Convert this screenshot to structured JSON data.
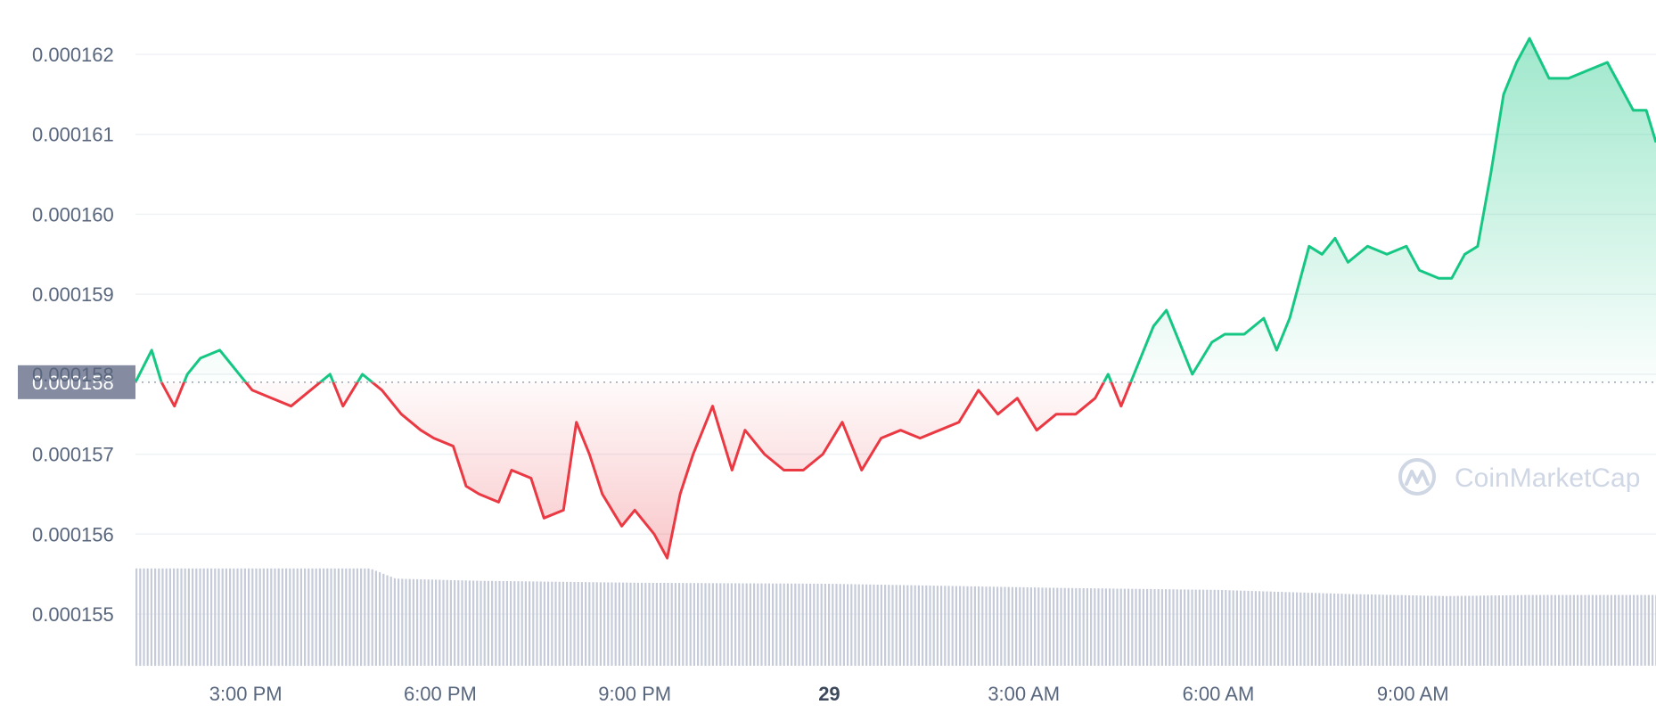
{
  "chart_data": {
    "type": "area",
    "y_ticks": [
      "0.000162",
      "0.000161",
      "0.000160",
      "0.000159",
      "0.000158",
      "0.000157",
      "0.000156",
      "0.000155"
    ],
    "y_tick_values": [
      0.000162,
      0.000161,
      0.00016,
      0.000159,
      0.000158,
      0.000157,
      0.000156,
      0.000155
    ],
    "ylim": [
      0.0001546,
      0.0001626
    ],
    "reference_price": 0.0001579,
    "reference_label": "0.000158",
    "x_ticks": [
      {
        "label": "3:00 PM",
        "hours": 15,
        "bold": false
      },
      {
        "label": "6:00 PM",
        "hours": 18,
        "bold": false
      },
      {
        "label": "9:00 PM",
        "hours": 21,
        "bold": false
      },
      {
        "label": "29",
        "hours": 24,
        "bold": true
      },
      {
        "label": "3:00 AM",
        "hours": 27,
        "bold": false
      },
      {
        "label": "6:00 AM",
        "hours": 30,
        "bold": false
      },
      {
        "label": "9:00 AM",
        "hours": 33,
        "bold": false
      }
    ],
    "xlim": [
      13.3,
      36.75
    ],
    "price_points": [
      [
        13.3,
        0.0001579
      ],
      [
        13.55,
        0.0001583
      ],
      [
        13.7,
        0.0001579
      ],
      [
        13.9,
        0.0001576
      ],
      [
        14.1,
        0.000158
      ],
      [
        14.3,
        0.0001582
      ],
      [
        14.6,
        0.0001583
      ],
      [
        14.9,
        0.000158
      ],
      [
        15.1,
        0.0001578
      ],
      [
        15.4,
        0.0001577
      ],
      [
        15.7,
        0.0001576
      ],
      [
        16.0,
        0.0001578
      ],
      [
        16.3,
        0.000158
      ],
      [
        16.5,
        0.0001576
      ],
      [
        16.8,
        0.000158
      ],
      [
        17.1,
        0.0001578
      ],
      [
        17.4,
        0.0001575
      ],
      [
        17.7,
        0.0001573
      ],
      [
        17.9,
        0.0001572
      ],
      [
        18.2,
        0.0001571
      ],
      [
        18.4,
        0.0001566
      ],
      [
        18.6,
        0.0001565
      ],
      [
        18.9,
        0.0001564
      ],
      [
        19.1,
        0.0001568
      ],
      [
        19.4,
        0.0001567
      ],
      [
        19.6,
        0.0001562
      ],
      [
        19.9,
        0.0001563
      ],
      [
        20.1,
        0.0001574
      ],
      [
        20.3,
        0.000157
      ],
      [
        20.5,
        0.0001565
      ],
      [
        20.8,
        0.0001561
      ],
      [
        21.0,
        0.0001563
      ],
      [
        21.3,
        0.000156
      ],
      [
        21.5,
        0.0001557
      ],
      [
        21.7,
        0.0001565
      ],
      [
        21.9,
        0.000157
      ],
      [
        22.2,
        0.0001576
      ],
      [
        22.5,
        0.0001568
      ],
      [
        22.7,
        0.0001573
      ],
      [
        23.0,
        0.000157
      ],
      [
        23.3,
        0.0001568
      ],
      [
        23.6,
        0.0001568
      ],
      [
        23.9,
        0.000157
      ],
      [
        24.2,
        0.0001574
      ],
      [
        24.5,
        0.0001568
      ],
      [
        24.8,
        0.0001572
      ],
      [
        25.1,
        0.0001573
      ],
      [
        25.4,
        0.0001572
      ],
      [
        25.7,
        0.0001573
      ],
      [
        26.0,
        0.0001574
      ],
      [
        26.3,
        0.0001578
      ],
      [
        26.6,
        0.0001575
      ],
      [
        26.9,
        0.0001577
      ],
      [
        27.2,
        0.0001573
      ],
      [
        27.5,
        0.0001575
      ],
      [
        27.8,
        0.0001575
      ],
      [
        28.1,
        0.0001577
      ],
      [
        28.3,
        0.000158
      ],
      [
        28.5,
        0.0001576
      ],
      [
        28.8,
        0.0001582
      ],
      [
        29.0,
        0.0001586
      ],
      [
        29.2,
        0.0001588
      ],
      [
        29.4,
        0.0001584
      ],
      [
        29.6,
        0.000158
      ],
      [
        29.9,
        0.0001584
      ],
      [
        30.1,
        0.0001585
      ],
      [
        30.4,
        0.0001585
      ],
      [
        30.7,
        0.0001587
      ],
      [
        30.9,
        0.0001583
      ],
      [
        31.1,
        0.0001587
      ],
      [
        31.4,
        0.0001596
      ],
      [
        31.6,
        0.0001595
      ],
      [
        31.8,
        0.0001597
      ],
      [
        32.0,
        0.0001594
      ],
      [
        32.3,
        0.0001596
      ],
      [
        32.6,
        0.0001595
      ],
      [
        32.9,
        0.0001596
      ],
      [
        33.1,
        0.0001593
      ],
      [
        33.4,
        0.0001592
      ],
      [
        33.6,
        0.0001592
      ],
      [
        33.8,
        0.0001595
      ],
      [
        34.0,
        0.0001596
      ],
      [
        34.2,
        0.0001605
      ],
      [
        34.4,
        0.0001615
      ],
      [
        34.6,
        0.0001619
      ],
      [
        34.8,
        0.0001622
      ],
      [
        35.1,
        0.0001617
      ],
      [
        35.4,
        0.0001617
      ],
      [
        35.7,
        0.0001618
      ],
      [
        36.0,
        0.0001619
      ],
      [
        36.2,
        0.0001616
      ],
      [
        36.4,
        0.0001613
      ],
      [
        36.6,
        0.0001613
      ],
      [
        36.75,
        0.0001609
      ]
    ],
    "volume_levels": [
      [
        13.3,
        0.95
      ],
      [
        16.9,
        0.95
      ],
      [
        17.3,
        0.85
      ],
      [
        18.5,
        0.83
      ],
      [
        21.0,
        0.81
      ],
      [
        24.0,
        0.8
      ],
      [
        27.5,
        0.76
      ],
      [
        30.0,
        0.74
      ],
      [
        32.0,
        0.7
      ],
      [
        33.5,
        0.68
      ],
      [
        34.7,
        0.69
      ],
      [
        36.75,
        0.69
      ]
    ],
    "colors": {
      "up": "#16c784",
      "down": "#ea3943",
      "grid": "#eff2f5",
      "volume": "#c5cbd8",
      "axis_text": "#58667e",
      "ref_label_bg": "#858ca2"
    }
  },
  "watermark": {
    "brand": "CoinMarketCap",
    "icon": "coinmarketcap-logo-icon"
  }
}
